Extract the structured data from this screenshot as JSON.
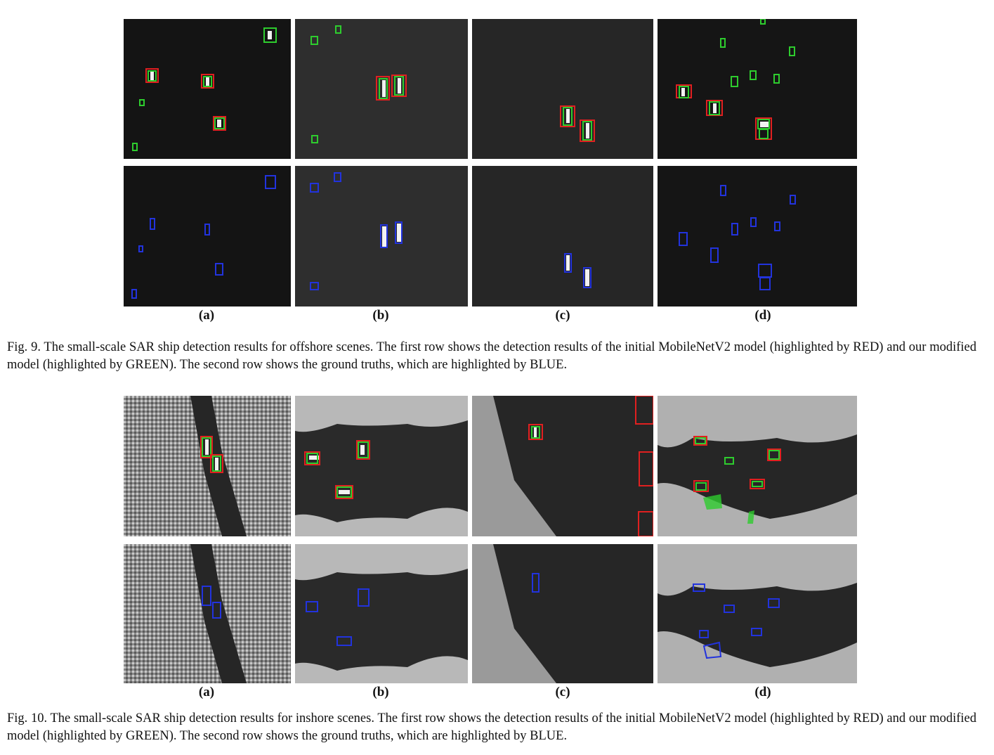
{
  "figures": [
    {
      "caption": "Fig. 9.  The small-scale SAR ship detection results for offshore scenes. The first row shows the detection results of the initial MobileNetV2 model (highlighted by RED) and our modified model (highlighted by GREEN). The second row shows the ground truths, which are highlighted by BLUE.",
      "labels": [
        "(a)",
        "(b)",
        "(c)",
        "(d)"
      ],
      "scene": "offshore"
    },
    {
      "caption": "Fig. 10.  The small-scale SAR ship detection results for inshore scenes. The first row shows the detection results of the initial MobileNetV2 model (highlighted by RED) and our modified model (highlighted by GREEN). The second row shows the ground truths, which are highlighted by BLUE.",
      "labels": [
        "(a)",
        "(b)",
        "(c)",
        "(d)"
      ],
      "scene": "inshore"
    }
  ],
  "colors": {
    "red": "#e02020",
    "green": "#2ecc2e",
    "blue": "#2233dd"
  }
}
